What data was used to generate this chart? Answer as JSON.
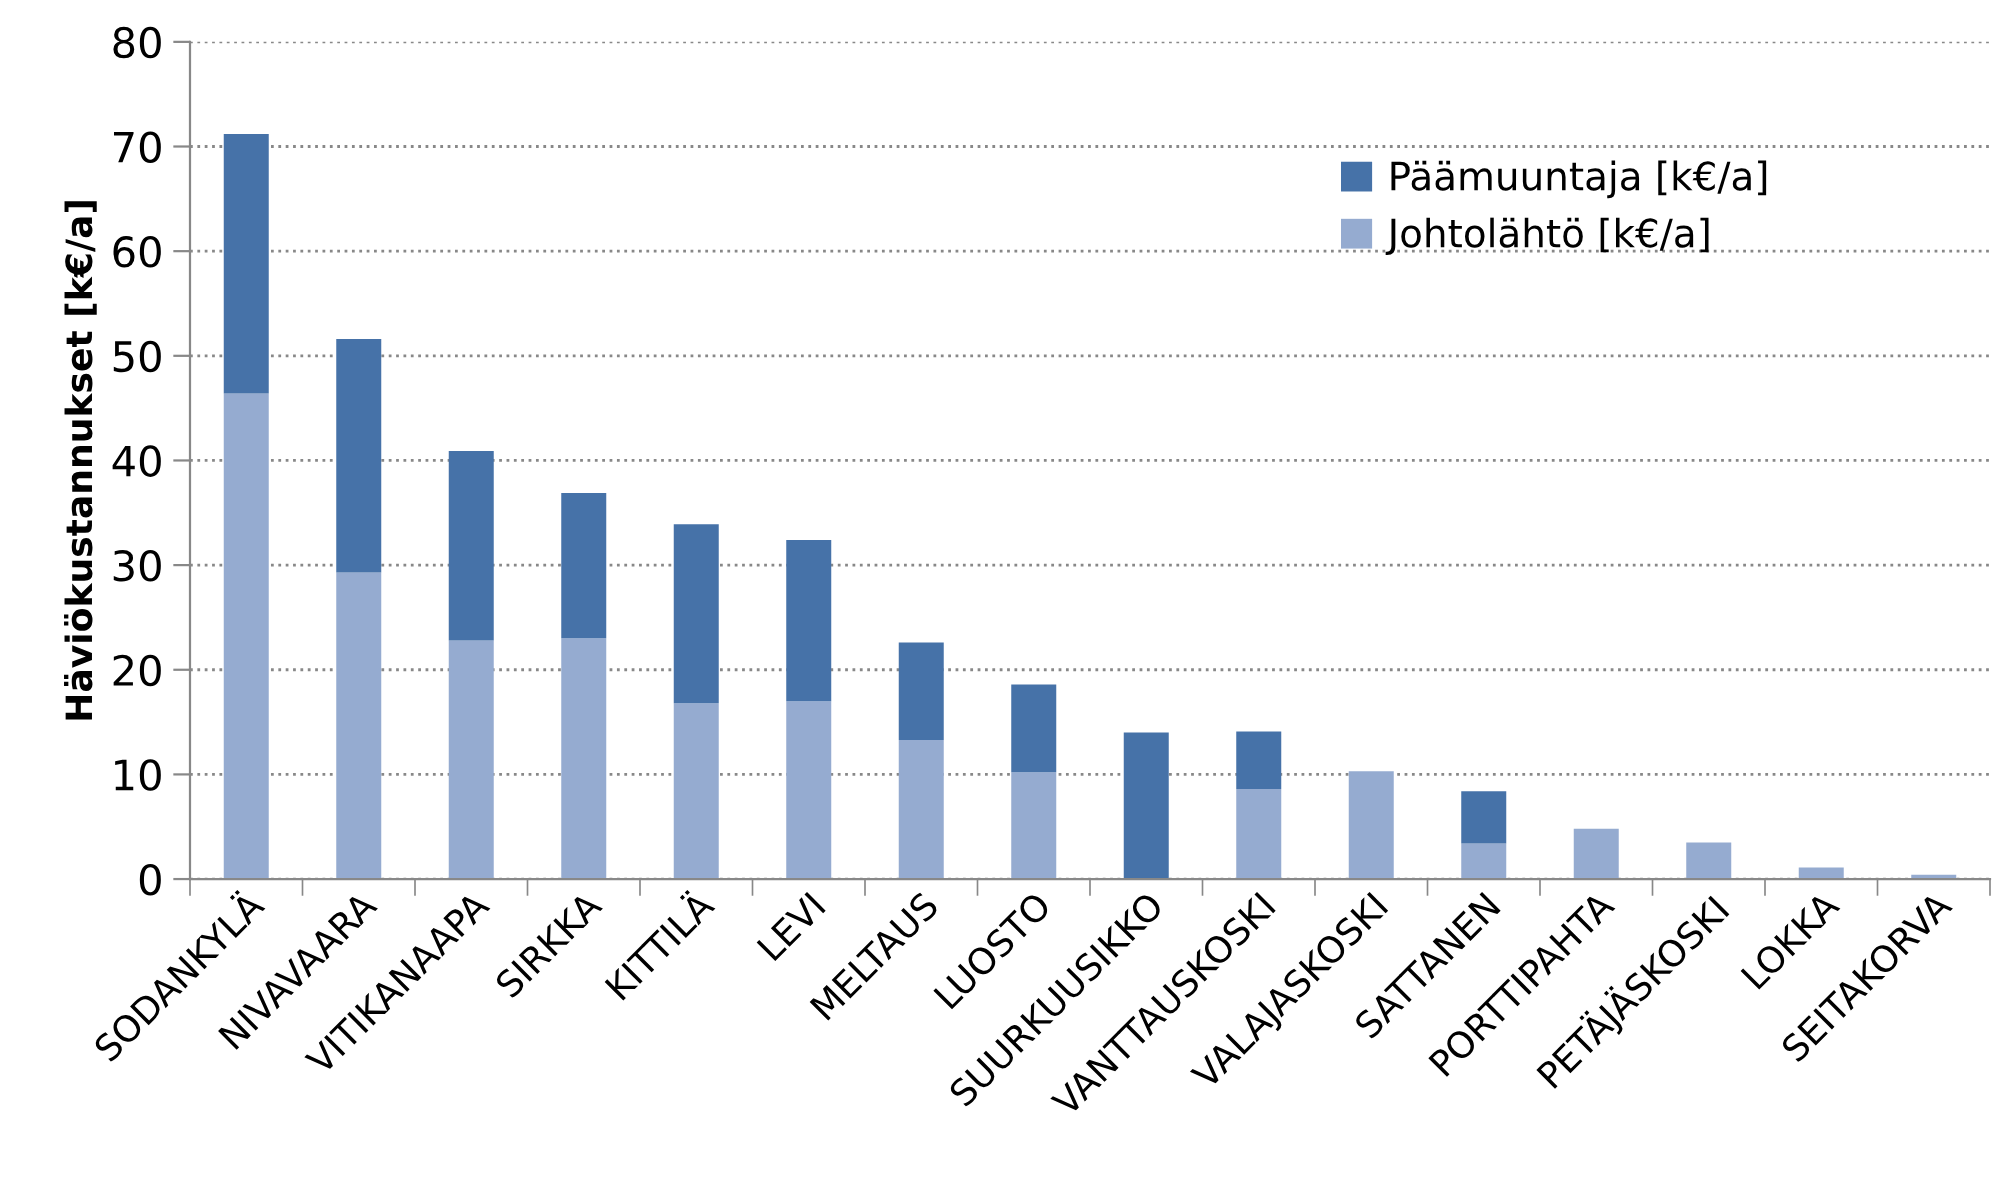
{
  "chart_data": {
    "type": "bar",
    "stacked": true,
    "ylabel": "Häviökustannukset [k€/a]",
    "categories": [
      "SODANKYLÄ",
      "NIVAVAARA",
      "VITIKANAAPA",
      "SIRKKA",
      "KITTILÄ",
      "LEVI",
      "MELTAUS",
      "LUOSTO",
      "SUURKUUSIKKO",
      "VANTTAUSKOSKI",
      "VALAJASKOSKI",
      "SATTANEN",
      "PORTTIPAHTA",
      "PETÄJÄSKOSKI",
      "LOKKA",
      "SEITAKORVA"
    ],
    "series": [
      {
        "name": "Johtolähtö [k€/a]",
        "color": "#95abd0",
        "values": [
          46.4,
          29.3,
          22.8,
          23.0,
          16.8,
          17.0,
          13.3,
          10.2,
          0,
          8.6,
          10.3,
          3.4,
          4.8,
          3.5,
          1.1,
          0.4
        ]
      },
      {
        "name": "Päämuuntaja [k€/a]",
        "color": "#4672a8",
        "values": [
          24.8,
          22.3,
          18.1,
          13.9,
          17.1,
          15.4,
          9.3,
          8.4,
          14.0,
          5.5,
          0,
          5.0,
          0,
          0,
          0,
          0
        ]
      }
    ],
    "ylim": [
      0,
      80
    ],
    "yticks": [
      0,
      10,
      20,
      30,
      40,
      50,
      60,
      70,
      80
    ],
    "grid": "y",
    "legend": "top right"
  }
}
